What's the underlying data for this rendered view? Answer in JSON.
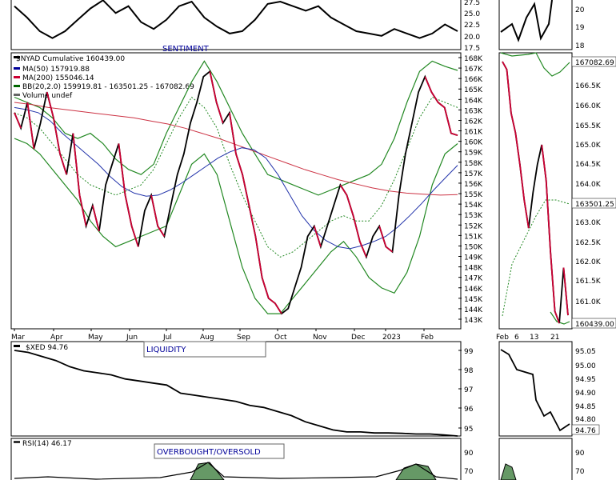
{
  "chart_data": [
    {
      "type": "line",
      "panel": "sentiment-top",
      "label": "SENTIMENT",
      "y_ticks": [
        "27.5",
        "25.0",
        "22.5",
        "20.0",
        "17.5"
      ],
      "side_y_ticks": [
        "20",
        "19",
        "18"
      ],
      "series": [
        {
          "values": [
            26.5,
            24.0,
            21.0,
            19.5,
            21.0,
            23.5,
            26.0,
            27.8,
            25.0,
            26.5,
            23.0,
            21.5,
            23.5,
            26.5,
            27.5,
            24.0,
            22.0,
            20.5,
            21.0,
            23.5,
            27.0,
            27.5,
            26.5,
            25.5,
            26.5,
            24.0,
            22.5,
            21.0,
            20.5,
            20.0,
            21.5,
            20.5,
            19.5,
            20.5,
            22.5,
            21.0
          ]
        }
      ]
    },
    {
      "type": "line",
      "panel": "nyad-main",
      "title": "$NYAD Cumulative 160439.00",
      "legend": [
        {
          "name": "MA(50) 157919.88",
          "color": "#000099"
        },
        {
          "name": "MA(200) 155046.14",
          "color": "#cc0033"
        },
        {
          "name": "BB(20,2.0) 159919.81 - 163501.25 - 167082.69",
          "color": "#006600"
        },
        {
          "name": "Volume undef",
          "color": "#666666"
        }
      ],
      "x_ticks": [
        "Mar",
        "Apr",
        "May",
        "Jun",
        "Jul",
        "Aug",
        "Sep",
        "Oct",
        "Nov",
        "Dec",
        "2023",
        "Feb"
      ],
      "y_ticks": [
        "168K",
        "167K",
        "166K",
        "165K",
        "164K",
        "163K",
        "162K",
        "161K",
        "160K",
        "159K",
        "158K",
        "157K",
        "156K",
        "155K",
        "154K",
        "153K",
        "152K",
        "151K",
        "150K",
        "149K",
        "148K",
        "147K",
        "146K",
        "145K",
        "144K",
        "143K"
      ],
      "ylim": [
        142.5,
        168.5
      ],
      "series": [
        {
          "name": "NYAD",
          "values": [
            163,
            161.5,
            164,
            159.5,
            162,
            165,
            162.5,
            159,
            157,
            161,
            155,
            152,
            154,
            151.5,
            156,
            158,
            160,
            155,
            152,
            150,
            153.5,
            155,
            152,
            151,
            154,
            157,
            159,
            162,
            164,
            166.5,
            167,
            164,
            162,
            163,
            159,
            157,
            154,
            151,
            147,
            145,
            144.5,
            143.5,
            144,
            146,
            148,
            151,
            152,
            150,
            152,
            154,
            156,
            155,
            153,
            150.5,
            149,
            151,
            152,
            150,
            149.5,
            155,
            159,
            162,
            165,
            166.5,
            165,
            164,
            163.5,
            161,
            160.8
          ]
        },
        {
          "name": "MA(50)",
          "values": [
            163.5,
            163.3,
            163,
            162.2,
            161,
            160,
            159,
            158,
            156.8,
            155.8,
            155.2,
            154.9,
            155,
            155.5,
            156.2,
            157,
            157.8,
            158.6,
            159.2,
            159.6,
            159.4,
            158.6,
            157,
            155,
            153,
            151.6,
            150.6,
            150,
            149.8,
            150.1,
            150.5,
            151,
            151.9,
            153,
            154.2,
            155.5,
            156.7,
            157.9
          ]
        },
        {
          "name": "MA(200)",
          "values": [
            164,
            163.8,
            163.5,
            163.3,
            163.1,
            162.9,
            162.7,
            162.5,
            162.2,
            161.9,
            161.5,
            161,
            160.5,
            159.9,
            159.3,
            158.7,
            158.1,
            157.5,
            157,
            156.5,
            156.1,
            155.7,
            155.4,
            155.2,
            155.1,
            155,
            155.05
          ]
        },
        {
          "name": "BB upper",
          "values": [
            164.5,
            164,
            163.5,
            162.5,
            161,
            160.5,
            161,
            160,
            158.5,
            157.5,
            157,
            158,
            161,
            163.5,
            166,
            168,
            166,
            163.5,
            161,
            159,
            157,
            156.5,
            156,
            155.5,
            155,
            155.5,
            156,
            156.5,
            157,
            158,
            160.5,
            164,
            167,
            168,
            167.5,
            167.1
          ]
        },
        {
          "name": "BB middle",
          "values": [
            163,
            162.5,
            161.5,
            160,
            158.5,
            157,
            156,
            155.5,
            155,
            155.5,
            156,
            157.5,
            160,
            162.5,
            164.5,
            163.5,
            161.5,
            158,
            155,
            152.5,
            150,
            149,
            149.5,
            150.5,
            151.5,
            152.5,
            153,
            152.5,
            152.5,
            154,
            156.5,
            159.5,
            162.5,
            164.5,
            164,
            163.5
          ]
        },
        {
          "name": "BB lower",
          "values": [
            160.5,
            160,
            159,
            157.5,
            156,
            154.5,
            152.5,
            151,
            150,
            150.5,
            151,
            151.5,
            152,
            155,
            158,
            159,
            157,
            152.5,
            148,
            145,
            143.5,
            143.5,
            145,
            146.5,
            148,
            149.5,
            150.5,
            149,
            147,
            146,
            145.5,
            147.5,
            151,
            156,
            159,
            160
          ]
        }
      ]
    },
    {
      "type": "line",
      "panel": "nyad-side",
      "x_ticks": [
        "Feb",
        "6",
        "13",
        "21"
      ],
      "y_ticks": [
        "167082.69",
        "166.5K",
        "166.0K",
        "165.5K",
        "165.0K",
        "164.5K",
        "164.0K",
        "163501.25",
        "163.0K",
        "162.5K",
        "162.0K",
        "161.5K",
        "161.0K",
        "160439.00"
      ],
      "series": [
        {
          "name": "NYAD",
          "values": [
            166.8,
            166.6,
            165.5,
            165.0,
            164.2,
            163.3,
            162.6,
            163.5,
            164.2,
            164.7,
            163.8,
            162.0,
            160.5,
            160.2,
            161.6,
            160.4
          ]
        }
      ]
    },
    {
      "type": "line",
      "panel": "liquidity",
      "label": "LIQUIDITY",
      "title": "$XED 94.76",
      "y_ticks": [
        "99",
        "98",
        "97",
        "96",
        "95"
      ],
      "side_y_ticks": [
        "95.05",
        "95.00",
        "94.95",
        "94.90",
        "94.85",
        "94.80",
        "94.76"
      ],
      "series": [
        {
          "name": "$XED",
          "values": [
            99.0,
            98.9,
            98.7,
            98.5,
            98.2,
            98.0,
            97.9,
            97.8,
            97.6,
            97.5,
            97.4,
            97.3,
            96.9,
            96.8,
            96.7,
            96.6,
            96.5,
            96.3,
            96.2,
            96.0,
            95.8,
            95.5,
            95.3,
            95.1,
            95.0,
            95.0,
            94.95,
            94.95,
            94.93,
            94.9,
            94.9,
            94.85,
            94.8
          ]
        }
      ]
    },
    {
      "type": "area",
      "panel": "rsi",
      "label": "OVERBOUGHT/OVERSOLD",
      "title": "RSI(14) 46.17",
      "y_ticks": [
        "90",
        "70"
      ],
      "side_y_ticks": [
        "90",
        "70"
      ]
    }
  ]
}
